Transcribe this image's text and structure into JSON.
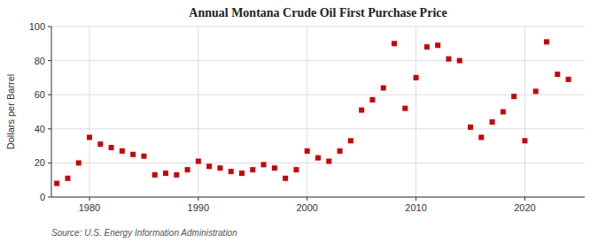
{
  "chart_data": {
    "type": "scatter",
    "title": "Annual Montana Crude Oil First Purchase Price",
    "ylabel": "Dollars per Barrel",
    "source": "Source: U.S. Energy Information Administration",
    "x": [
      1977,
      1978,
      1979,
      1980,
      1981,
      1982,
      1983,
      1984,
      1985,
      1986,
      1987,
      1988,
      1989,
      1990,
      1991,
      1992,
      1993,
      1994,
      1995,
      1996,
      1997,
      1998,
      1999,
      2000,
      2001,
      2002,
      2003,
      2004,
      2005,
      2006,
      2007,
      2008,
      2009,
      2010,
      2011,
      2012,
      2013,
      2014,
      2015,
      2016,
      2017,
      2018,
      2019,
      2020,
      2021,
      2022,
      2023,
      2024
    ],
    "values": [
      8,
      11,
      20,
      35,
      31,
      29,
      27,
      25,
      24,
      13,
      14,
      13,
      16,
      21,
      18,
      17,
      15,
      14,
      16,
      19,
      17,
      11,
      16,
      27,
      23,
      21,
      27,
      33,
      51,
      57,
      64,
      90,
      52,
      70,
      88,
      89,
      81,
      80,
      41,
      35,
      44,
      50,
      59,
      33,
      62,
      91,
      72,
      69
    ],
    "xlim": [
      1976.5,
      2025.5
    ],
    "ylim": [
      0,
      100
    ],
    "xticks": [
      1980,
      1990,
      2000,
      2010,
      2020
    ],
    "yticks": [
      0,
      20,
      40,
      60,
      80,
      100
    ],
    "color": "#cc0000",
    "marker": "square",
    "grid": true
  }
}
